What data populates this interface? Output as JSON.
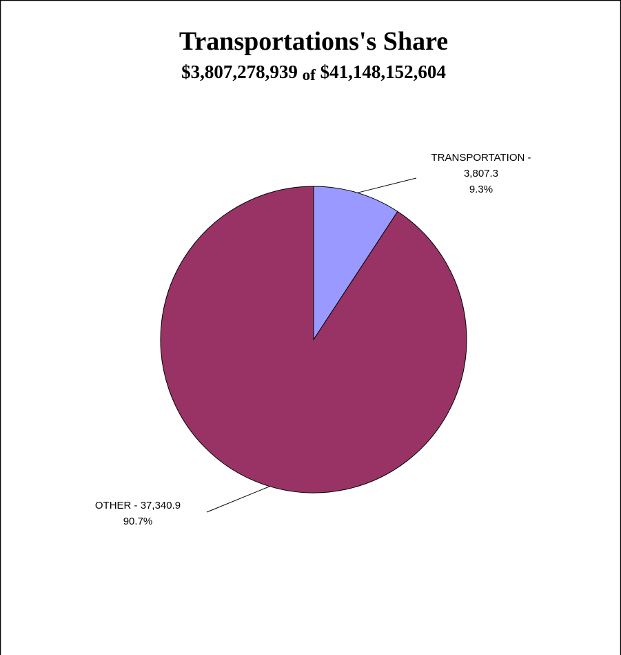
{
  "chart_data": {
    "type": "pie",
    "title": "Transportations's Share",
    "subtitle": [
      "$3,807,278,939",
      "of",
      "$41,148,152,604"
    ],
    "categories": [
      "TRANSPORTATION -",
      "OTHER -"
    ],
    "values": [
      3807.3,
      37340.9
    ],
    "value_labels": [
      "3,807.3",
      "37,340.9"
    ],
    "percents": [
      9.3,
      90.7
    ],
    "percent_labels": [
      "9.3%",
      "90.7%"
    ],
    "colors": [
      "#9999ff",
      "#993366"
    ]
  }
}
